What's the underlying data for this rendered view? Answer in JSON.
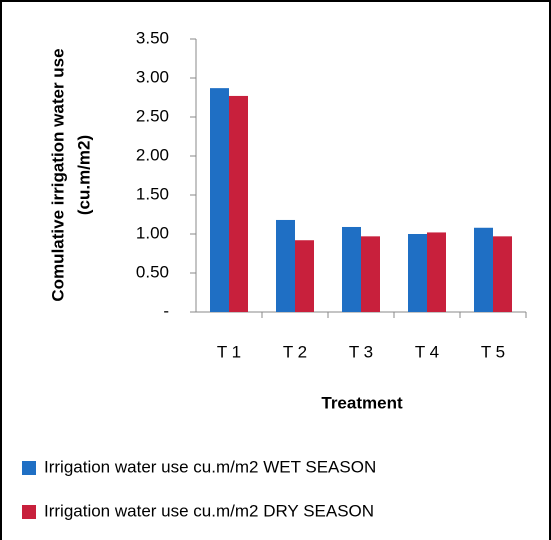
{
  "chart_data": {
    "type": "bar",
    "x_label": "Treatment",
    "y_label": [
      "Comulative irrigation water use",
      "(cu.m/m2)"
    ],
    "categories": [
      "T 1",
      "T 2",
      "T 3",
      "T 4",
      "T 5"
    ],
    "series": [
      {
        "name": "Irrigation water use cu.m/m2 WET SEASON",
        "color": "#1f6fc4",
        "values": [
          2.87,
          1.18,
          1.09,
          1.0,
          1.08
        ]
      },
      {
        "name": "Irrigation water use cu.m/m2 DRY SEASON",
        "color": "#c8203c",
        "values": [
          2.77,
          0.92,
          0.97,
          1.02,
          0.97
        ]
      }
    ],
    "ylim": [
      0,
      3.5
    ],
    "yticks": [
      {
        "value": 0,
        "label": "-"
      },
      {
        "value": 0.5,
        "label": "0.50"
      },
      {
        "value": 1.0,
        "label": "1.00"
      },
      {
        "value": 1.5,
        "label": "1.50"
      },
      {
        "value": 2.0,
        "label": "2.00"
      },
      {
        "value": 2.5,
        "label": "2.50"
      },
      {
        "value": 3.0,
        "label": "3.00"
      },
      {
        "value": 3.5,
        "label": "3.50"
      }
    ],
    "grid": false,
    "legend": "bottom"
  }
}
